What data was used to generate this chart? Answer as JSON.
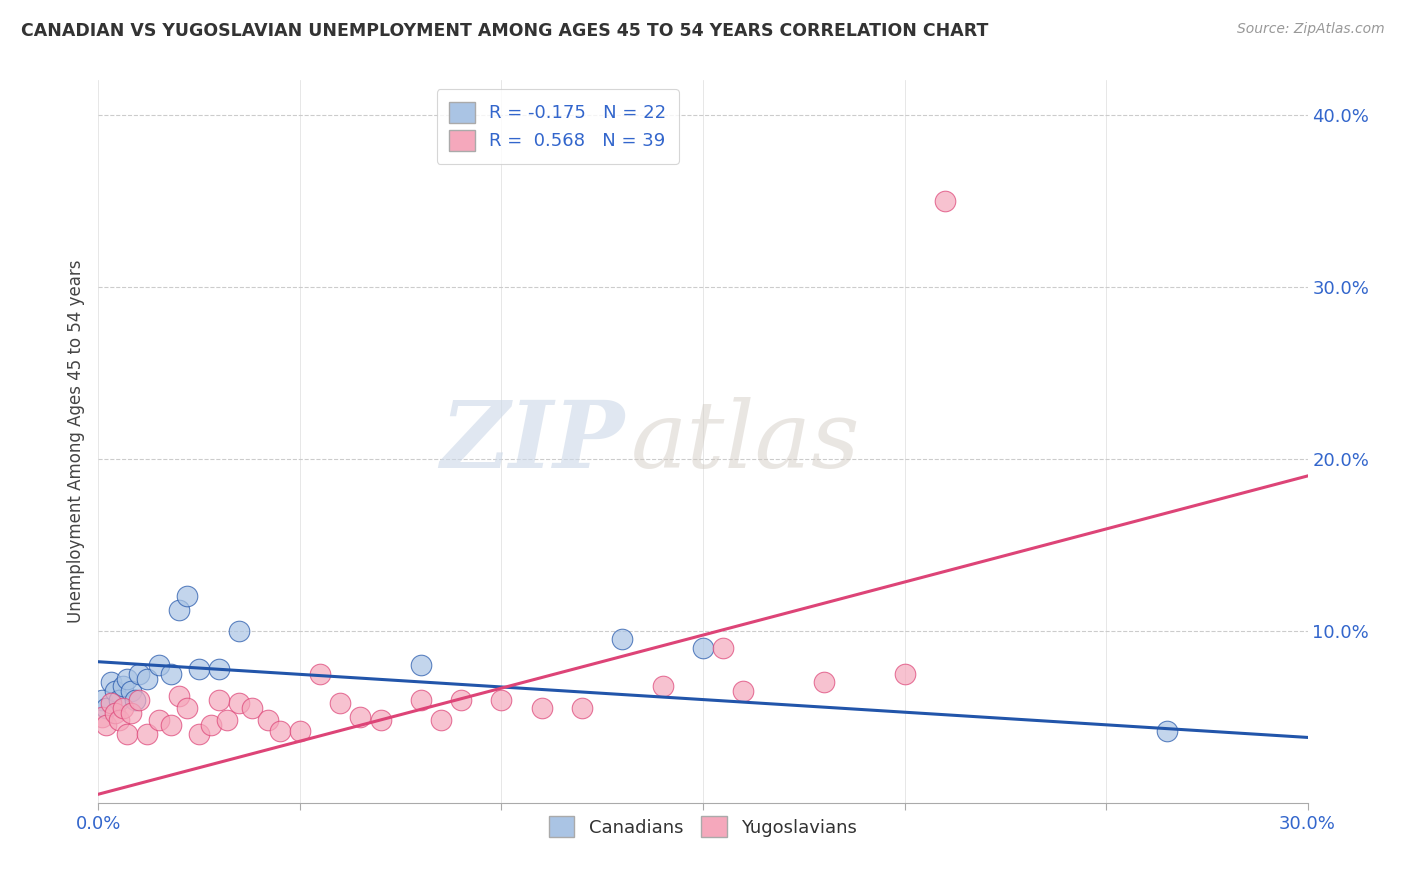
{
  "title": "CANADIAN VS YUGOSLAVIAN UNEMPLOYMENT AMONG AGES 45 TO 54 YEARS CORRELATION CHART",
  "source": "Source: ZipAtlas.com",
  "ylabel": "Unemployment Among Ages 45 to 54 years",
  "xlim": [
    0.0,
    0.3
  ],
  "ylim": [
    0.0,
    0.42
  ],
  "xticks": [
    0.0,
    0.05,
    0.1,
    0.15,
    0.2,
    0.25,
    0.3
  ],
  "xtick_labels": [
    "0.0%",
    "",
    "",
    "",
    "",
    "",
    "30.0%"
  ],
  "yticks": [
    0.1,
    0.2,
    0.3,
    0.4
  ],
  "ytick_labels": [
    "10.0%",
    "20.0%",
    "30.0%",
    "40.0%"
  ],
  "canadian_R": -0.175,
  "canadian_N": 22,
  "yugoslavian_R": 0.568,
  "yugoslavian_N": 39,
  "canadian_color": "#aac4e4",
  "yugoslavian_color": "#f5a8bc",
  "canadian_line_color": "#2255aa",
  "yugoslavian_line_color": "#dd4477",
  "watermark_zip": "ZIP",
  "watermark_atlas": "atlas",
  "legend_label_canadian": "Canadians",
  "legend_label_yugoslavian": "Yugoslavians",
  "canadian_x": [
    0.001,
    0.002,
    0.003,
    0.004,
    0.005,
    0.006,
    0.007,
    0.008,
    0.009,
    0.01,
    0.012,
    0.015,
    0.018,
    0.02,
    0.022,
    0.025,
    0.03,
    0.035,
    0.08,
    0.13,
    0.15,
    0.265
  ],
  "canadian_y": [
    0.06,
    0.055,
    0.07,
    0.065,
    0.06,
    0.068,
    0.072,
    0.065,
    0.06,
    0.075,
    0.072,
    0.08,
    0.075,
    0.112,
    0.12,
    0.078,
    0.078,
    0.1,
    0.08,
    0.095,
    0.09,
    0.042
  ],
  "yugoslavian_x": [
    0.001,
    0.002,
    0.003,
    0.004,
    0.005,
    0.006,
    0.007,
    0.008,
    0.01,
    0.012,
    0.015,
    0.018,
    0.02,
    0.022,
    0.025,
    0.028,
    0.03,
    0.032,
    0.035,
    0.038,
    0.042,
    0.045,
    0.05,
    0.055,
    0.06,
    0.065,
    0.07,
    0.08,
    0.085,
    0.09,
    0.1,
    0.11,
    0.12,
    0.14,
    0.155,
    0.16,
    0.18,
    0.2,
    0.21
  ],
  "yugoslavian_y": [
    0.05,
    0.045,
    0.058,
    0.052,
    0.048,
    0.055,
    0.04,
    0.052,
    0.06,
    0.04,
    0.048,
    0.045,
    0.062,
    0.055,
    0.04,
    0.045,
    0.06,
    0.048,
    0.058,
    0.055,
    0.048,
    0.042,
    0.042,
    0.075,
    0.058,
    0.05,
    0.048,
    0.06,
    0.048,
    0.06,
    0.06,
    0.055,
    0.055,
    0.068,
    0.09,
    0.065,
    0.07,
    0.075,
    0.35
  ],
  "can_line_x0": 0.0,
  "can_line_y0": 0.082,
  "can_line_x1": 0.3,
  "can_line_y1": 0.038,
  "yug_line_x0": 0.0,
  "yug_line_y0": 0.005,
  "yug_line_x1": 0.3,
  "yug_line_y1": 0.19
}
